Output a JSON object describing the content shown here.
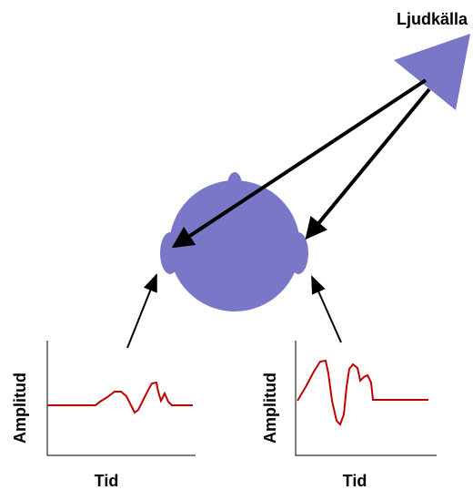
{
  "source": {
    "label": "Ljudkälla"
  },
  "plots": [
    {
      "y_label": "Amplitud",
      "x_label": "Tid"
    },
    {
      "y_label": "Amplitud",
      "x_label": "Tid"
    }
  ]
}
